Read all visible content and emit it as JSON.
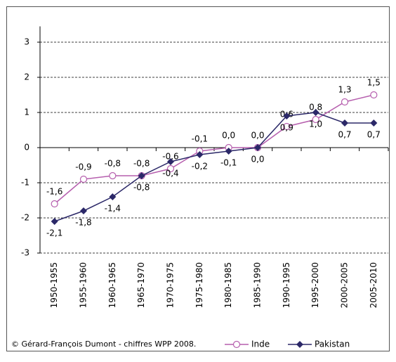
{
  "chart_data": {
    "type": "line",
    "source": "© Gérard-François Dumont - chiffres WPP 2008.",
    "categories": [
      "1950-1955",
      "1955-1960",
      "1960-1965",
      "1965-1970",
      "1970-1975",
      "1975-1980",
      "1980-1985",
      "1985-1990",
      "1990-1995",
      "1995-2000",
      "2000-2005",
      "2005-2010"
    ],
    "series": [
      {
        "name": "Inde",
        "color": "#b65fae",
        "marker": "circle",
        "values": [
          -1.6,
          -0.9,
          -0.8,
          -0.8,
          -0.6,
          -0.1,
          0.0,
          0.0,
          0.6,
          0.8,
          1.3,
          1.5
        ],
        "value_labels": [
          "-1,6",
          "-0,9",
          "-0,8",
          "-0,8",
          "-0,6",
          "-0,1",
          "0,0",
          "0,0",
          "0,6",
          "0,8",
          "1,3",
          "1,5"
        ]
      },
      {
        "name": "Pakistan",
        "color": "#2b2868",
        "marker": "diamond",
        "values": [
          -2.1,
          -1.8,
          -1.4,
          -0.8,
          -0.4,
          -0.2,
          -0.1,
          0.0,
          0.9,
          1.0,
          0.7,
          0.7
        ],
        "value_labels": [
          "-2,1",
          "-1,8",
          "-1,4",
          "-0,8",
          "-0,4",
          "-0,2",
          "-0,1",
          "0,0",
          "0,9",
          "1,0",
          "0,7",
          "0,7"
        ]
      }
    ],
    "ylim": [
      -3,
      3.45
    ],
    "yticks": [
      -3,
      -2,
      -1,
      0,
      1,
      2,
      3
    ],
    "grid": true
  }
}
